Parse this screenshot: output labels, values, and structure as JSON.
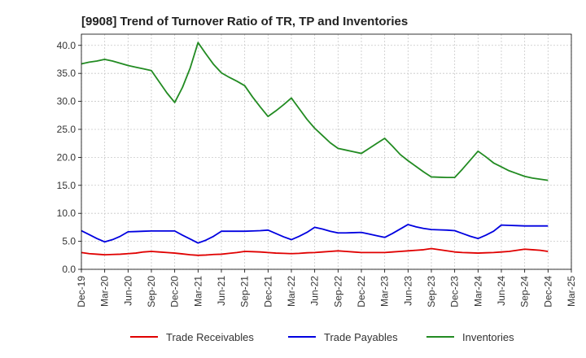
{
  "chart_data": {
    "type": "line",
    "title": "[9908]  Trend of Turnover Ratio of TR, TP and Inventories",
    "xlabel": "",
    "ylabel": "",
    "ylim": [
      0,
      42
    ],
    "yticks": [
      "0.0",
      "5.0",
      "10.0",
      "15.0",
      "20.0",
      "25.0",
      "30.0",
      "35.0",
      "40.0"
    ],
    "xtick_labels": [
      "Dec-19",
      "Mar-20",
      "Jun-20",
      "Sep-20",
      "Dec-20",
      "Mar-21",
      "Jun-21",
      "Sep-21",
      "Dec-21",
      "Mar-22",
      "Jun-22",
      "Sep-22",
      "Dec-22",
      "Mar-23",
      "Jun-23",
      "Sep-23",
      "Dec-23",
      "Mar-24",
      "Jun-24",
      "Sep-24",
      "Dec-24",
      "Mar-25"
    ],
    "x": [
      "Dec-19",
      "Jan-20",
      "Feb-20",
      "Mar-20",
      "Apr-20",
      "May-20",
      "Jun-20",
      "Jul-20",
      "Aug-20",
      "Sep-20",
      "Oct-20",
      "Nov-20",
      "Dec-20",
      "Jan-21",
      "Feb-21",
      "Mar-21",
      "Apr-21",
      "May-21",
      "Jun-21",
      "Jul-21",
      "Aug-21",
      "Sep-21",
      "Oct-21",
      "Nov-21",
      "Dec-21",
      "Jan-22",
      "Feb-22",
      "Mar-22",
      "Apr-22",
      "May-22",
      "Jun-22",
      "Jul-22",
      "Aug-22",
      "Sep-22",
      "Oct-22",
      "Nov-22",
      "Dec-22",
      "Jan-23",
      "Feb-23",
      "Mar-23",
      "Apr-23",
      "May-23",
      "Jun-23",
      "Jul-23",
      "Aug-23",
      "Sep-23",
      "Oct-23",
      "Nov-23",
      "Dec-23",
      "Jan-24",
      "Feb-24",
      "Mar-24",
      "Apr-24",
      "May-24",
      "Jun-24",
      "Jul-24",
      "Aug-24",
      "Sep-24",
      "Oct-24",
      "Nov-24",
      "Dec-24"
    ],
    "grid": true,
    "legend_position": "bottom",
    "series": [
      {
        "name": "Trade Receivables",
        "color": "#e00000",
        "values": [
          3.0,
          2.8,
          2.7,
          2.6,
          2.65,
          2.7,
          2.8,
          2.9,
          3.1,
          3.2,
          3.1,
          3.0,
          2.9,
          2.75,
          2.6,
          2.5,
          2.55,
          2.65,
          2.7,
          2.85,
          3.0,
          3.2,
          3.15,
          3.1,
          3.0,
          2.9,
          2.85,
          2.8,
          2.85,
          2.95,
          3.0,
          3.1,
          3.2,
          3.3,
          3.2,
          3.1,
          3.0,
          3.0,
          3.0,
          3.0,
          3.1,
          3.2,
          3.3,
          3.4,
          3.5,
          3.7,
          3.5,
          3.3,
          3.1,
          3.0,
          2.95,
          2.9,
          2.95,
          3.0,
          3.1,
          3.2,
          3.4,
          3.6,
          3.5,
          3.4,
          3.2
        ]
      },
      {
        "name": "Trade Payables",
        "color": "#0000e0",
        "values": [
          6.9,
          6.2,
          5.5,
          4.9,
          5.3,
          5.9,
          6.7,
          6.75,
          6.8,
          6.85,
          6.85,
          6.85,
          6.85,
          6.1,
          5.4,
          4.7,
          5.2,
          5.9,
          6.8,
          6.8,
          6.8,
          6.8,
          6.85,
          6.9,
          7.0,
          6.4,
          5.8,
          5.3,
          5.9,
          6.6,
          7.5,
          7.2,
          6.8,
          6.5,
          6.5,
          6.55,
          6.6,
          6.3,
          6.0,
          5.7,
          6.4,
          7.2,
          8.0,
          7.6,
          7.3,
          7.1,
          7.05,
          7.0,
          6.9,
          6.4,
          5.9,
          5.5,
          6.1,
          6.8,
          7.9,
          7.85,
          7.8,
          7.75,
          7.75,
          7.75,
          7.75
        ]
      },
      {
        "name": "Inventories",
        "color": "#228b22",
        "values": [
          36.7,
          37.0,
          37.2,
          37.5,
          37.2,
          36.8,
          36.4,
          36.1,
          35.8,
          35.5,
          33.5,
          31.5,
          29.8,
          32.5,
          36.0,
          40.5,
          38.5,
          36.6,
          35.1,
          34.3,
          33.6,
          32.8,
          30.8,
          29.0,
          27.3,
          28.3,
          29.4,
          30.6,
          28.7,
          26.8,
          25.2,
          23.9,
          22.6,
          21.6,
          21.3,
          21.0,
          20.7,
          21.6,
          22.5,
          23.4,
          22.0,
          20.5,
          19.4,
          18.4,
          17.4,
          16.5,
          16.45,
          16.4,
          16.4,
          17.9,
          19.5,
          21.1,
          20.1,
          19.0,
          18.3,
          17.6,
          17.1,
          16.6,
          16.3,
          16.1,
          15.9
        ]
      }
    ]
  }
}
